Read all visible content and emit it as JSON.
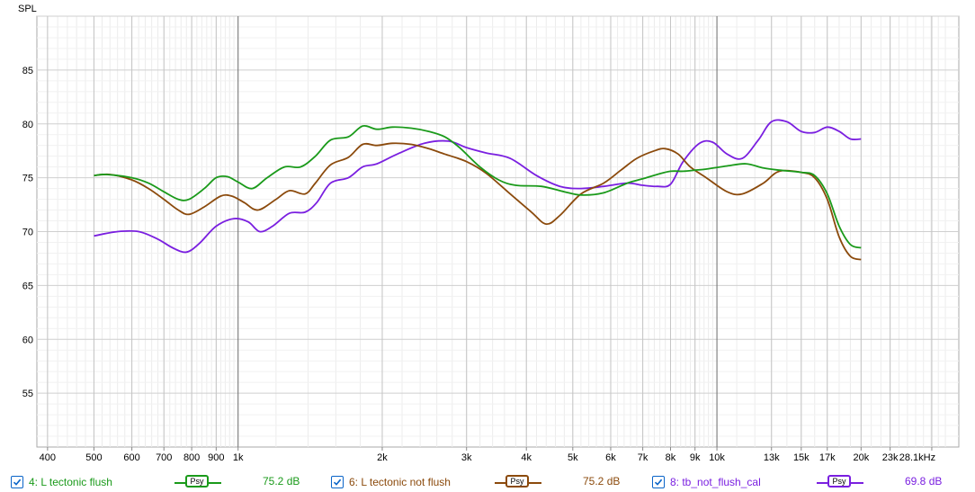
{
  "chart_data": {
    "type": "line",
    "ylabel": "SPL",
    "xlabel_unit": "kHz",
    "x_scale": "log",
    "xlim": [
      380,
      32000
    ],
    "ylim": [
      50,
      90
    ],
    "y_ticks": [
      55,
      60,
      65,
      70,
      75,
      80,
      85
    ],
    "x_ticks": [
      {
        "v": 400,
        "label": "400"
      },
      {
        "v": 500,
        "label": "500"
      },
      {
        "v": 600,
        "label": "600"
      },
      {
        "v": 700,
        "label": "700"
      },
      {
        "v": 800,
        "label": "800"
      },
      {
        "v": 900,
        "label": "900"
      },
      {
        "v": 1000,
        "label": "1k"
      },
      {
        "v": 2000,
        "label": "2k"
      },
      {
        "v": 3000,
        "label": "3k"
      },
      {
        "v": 4000,
        "label": "4k"
      },
      {
        "v": 5000,
        "label": "5k"
      },
      {
        "v": 6000,
        "label": "6k"
      },
      {
        "v": 7000,
        "label": "7k"
      },
      {
        "v": 8000,
        "label": "8k"
      },
      {
        "v": 9000,
        "label": "9k"
      },
      {
        "v": 10000,
        "label": "10k"
      },
      {
        "v": 13000,
        "label": "13k"
      },
      {
        "v": 15000,
        "label": "15k"
      },
      {
        "v": 17000,
        "label": "17k"
      },
      {
        "v": 20000,
        "label": "20k"
      },
      {
        "v": 23000,
        "label": "23k"
      },
      {
        "v": 28100,
        "label": "28.1kHz"
      }
    ],
    "grid": true,
    "series": [
      {
        "name": "4: L tectonic flush",
        "color": "#1a9a1a",
        "points": [
          [
            500,
            75.2
          ],
          [
            530,
            75.3
          ],
          [
            600,
            75.0
          ],
          [
            650,
            74.5
          ],
          [
            700,
            73.7
          ],
          [
            750,
            73.0
          ],
          [
            790,
            73.0
          ],
          [
            850,
            74.0
          ],
          [
            900,
            75.0
          ],
          [
            950,
            75.1
          ],
          [
            1000,
            74.6
          ],
          [
            1070,
            74.0
          ],
          [
            1150,
            75.0
          ],
          [
            1250,
            76.0
          ],
          [
            1350,
            76.0
          ],
          [
            1450,
            77.0
          ],
          [
            1560,
            78.5
          ],
          [
            1700,
            78.8
          ],
          [
            1820,
            79.8
          ],
          [
            1950,
            79.5
          ],
          [
            2100,
            79.7
          ],
          [
            2300,
            79.6
          ],
          [
            2500,
            79.3
          ],
          [
            2700,
            78.8
          ],
          [
            2900,
            77.8
          ],
          [
            3200,
            76.0
          ],
          [
            3500,
            74.8
          ],
          [
            3800,
            74.3
          ],
          [
            4300,
            74.2
          ],
          [
            4800,
            73.7
          ],
          [
            5200,
            73.4
          ],
          [
            5800,
            73.6
          ],
          [
            6500,
            74.5
          ],
          [
            7000,
            74.9
          ],
          [
            7500,
            75.3
          ],
          [
            8000,
            75.6
          ],
          [
            8500,
            75.6
          ],
          [
            9000,
            75.7
          ],
          [
            9500,
            75.8
          ],
          [
            10500,
            76.1
          ],
          [
            11500,
            76.3
          ],
          [
            12500,
            75.9
          ],
          [
            13500,
            75.7
          ],
          [
            15000,
            75.5
          ],
          [
            16000,
            75.2
          ],
          [
            17000,
            73.5
          ],
          [
            18000,
            70.5
          ],
          [
            19000,
            68.8
          ],
          [
            20000,
            68.5
          ]
        ]
      },
      {
        "name": "6: L tectonic not flush",
        "color": "#8b4a0c",
        "points": [
          [
            500,
            75.2
          ],
          [
            540,
            75.3
          ],
          [
            600,
            74.8
          ],
          [
            650,
            74.0
          ],
          [
            700,
            73.0
          ],
          [
            750,
            72.0
          ],
          [
            790,
            71.6
          ],
          [
            850,
            72.3
          ],
          [
            920,
            73.3
          ],
          [
            970,
            73.3
          ],
          [
            1030,
            72.7
          ],
          [
            1100,
            72.0
          ],
          [
            1200,
            73.0
          ],
          [
            1280,
            73.8
          ],
          [
            1380,
            73.5
          ],
          [
            1450,
            74.5
          ],
          [
            1560,
            76.2
          ],
          [
            1700,
            76.9
          ],
          [
            1820,
            78.1
          ],
          [
            1950,
            78.0
          ],
          [
            2100,
            78.2
          ],
          [
            2300,
            78.1
          ],
          [
            2500,
            77.7
          ],
          [
            2700,
            77.2
          ],
          [
            3000,
            76.5
          ],
          [
            3300,
            75.4
          ],
          [
            3700,
            73.5
          ],
          [
            4100,
            71.8
          ],
          [
            4400,
            70.7
          ],
          [
            4700,
            71.5
          ],
          [
            5200,
            73.5
          ],
          [
            5800,
            74.5
          ],
          [
            6300,
            75.7
          ],
          [
            6800,
            76.8
          ],
          [
            7400,
            77.5
          ],
          [
            7800,
            77.7
          ],
          [
            8300,
            77.2
          ],
          [
            8800,
            76.0
          ],
          [
            9500,
            75.0
          ],
          [
            10500,
            73.7
          ],
          [
            11300,
            73.5
          ],
          [
            12500,
            74.5
          ],
          [
            13500,
            75.6
          ],
          [
            15000,
            75.5
          ],
          [
            16000,
            75.0
          ],
          [
            17000,
            73.0
          ],
          [
            18000,
            69.5
          ],
          [
            19000,
            67.7
          ],
          [
            20000,
            67.4
          ]
        ]
      },
      {
        "name": "8: tb_not_flush_cal",
        "color": "#7a1fe0",
        "points": [
          [
            500,
            69.6
          ],
          [
            560,
            70.0
          ],
          [
            620,
            70.0
          ],
          [
            680,
            69.3
          ],
          [
            730,
            68.5
          ],
          [
            780,
            68.1
          ],
          [
            830,
            68.9
          ],
          [
            900,
            70.5
          ],
          [
            980,
            71.2
          ],
          [
            1050,
            70.9
          ],
          [
            1110,
            70.0
          ],
          [
            1180,
            70.5
          ],
          [
            1280,
            71.7
          ],
          [
            1380,
            71.8
          ],
          [
            1460,
            72.7
          ],
          [
            1560,
            74.5
          ],
          [
            1700,
            75.0
          ],
          [
            1820,
            76.0
          ],
          [
            1950,
            76.3
          ],
          [
            2150,
            77.2
          ],
          [
            2450,
            78.2
          ],
          [
            2750,
            78.4
          ],
          [
            3000,
            77.8
          ],
          [
            3300,
            77.3
          ],
          [
            3700,
            76.8
          ],
          [
            4200,
            75.2
          ],
          [
            4700,
            74.2
          ],
          [
            5200,
            74.0
          ],
          [
            5800,
            74.2
          ],
          [
            6500,
            74.5
          ],
          [
            7000,
            74.3
          ],
          [
            7500,
            74.2
          ],
          [
            8000,
            74.4
          ],
          [
            8500,
            76.5
          ],
          [
            9200,
            78.2
          ],
          [
            9800,
            78.3
          ],
          [
            10500,
            77.2
          ],
          [
            11300,
            76.8
          ],
          [
            12200,
            78.5
          ],
          [
            13000,
            80.2
          ],
          [
            14000,
            80.2
          ],
          [
            15000,
            79.3
          ],
          [
            16000,
            79.2
          ],
          [
            17000,
            79.7
          ],
          [
            18000,
            79.3
          ],
          [
            19000,
            78.6
          ],
          [
            20000,
            78.6
          ]
        ]
      }
    ]
  },
  "legend": {
    "items": [
      {
        "label": "4: L tectonic flush",
        "psy": "Psy",
        "value": "75.2 dB",
        "color": "#1a9a1a"
      },
      {
        "label": "6: L tectonic not flush",
        "psy": "Psy",
        "value": "75.2 dB",
        "color": "#8b4a0c"
      },
      {
        "label": "8: tb_not_flush_cal",
        "psy": "Psy",
        "value": "69.8 dB",
        "color": "#7a1fe0"
      }
    ]
  }
}
